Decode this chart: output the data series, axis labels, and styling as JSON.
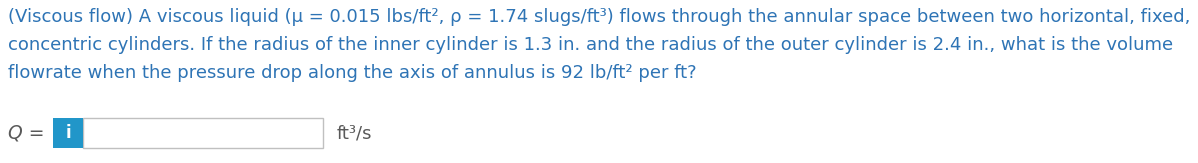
{
  "background_color": "#ffffff",
  "text_color": "#2E74B5",
  "q_label_color": "#595959",
  "unit_color": "#595959",
  "main_text_line1": "(Viscous flow) A viscous liquid (μ = 0.015 lbs/ft², ρ = 1.74 slugs/ft³) flows through the annular space between two horizontal, fixed,",
  "main_text_line2": "concentric cylinders. If the radius of the inner cylinder is 1.3 in. and the radius of the outer cylinder is 2.4 in., what is the volume",
  "main_text_line3": "flowrate when the pressure drop along the axis of annulus is 92 lb/ft² per ft?",
  "q_label": "Q = ",
  "unit_text": "ft³/s",
  "box_color": "#2196C9",
  "box_i_color": "#ffffff",
  "input_box_border": "#c0c0c0",
  "font_size_main": 13.0,
  "font_size_q": 13.5,
  "font_size_unit": 13.0,
  "font_size_i": 12.0,
  "fig_width": 11.98,
  "fig_height": 1.63,
  "dpi": 100
}
